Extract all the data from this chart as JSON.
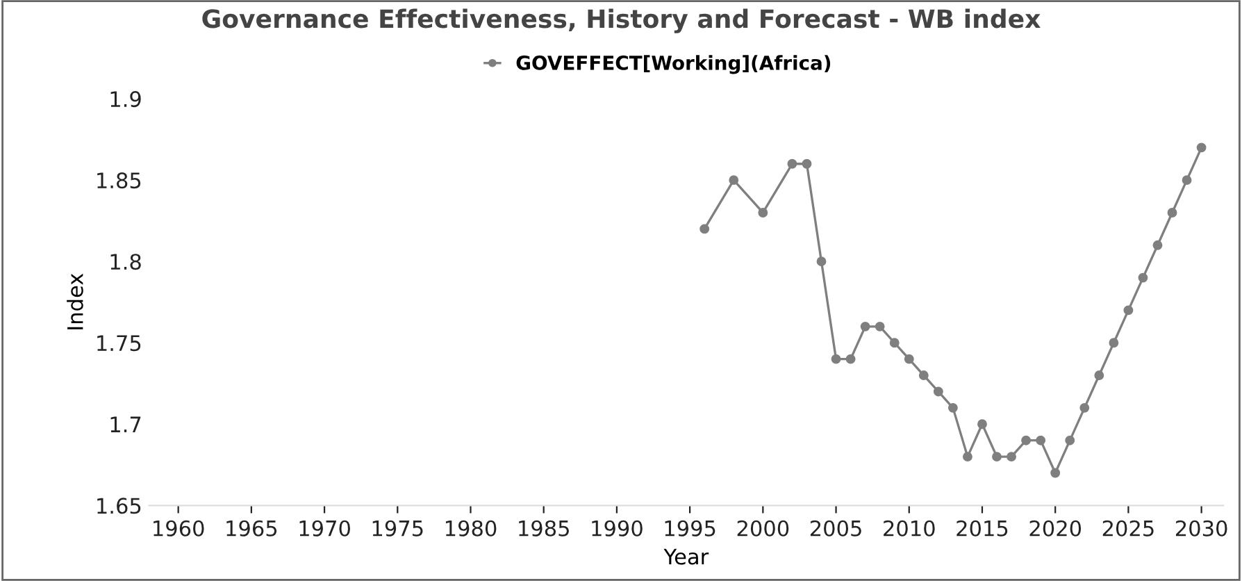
{
  "chart_data": {
    "type": "line",
    "title": "Governance Effectiveness, History and Forecast - WB index",
    "xlabel": "Year",
    "ylabel": "Index",
    "x": [
      1996,
      1998,
      2000,
      2002,
      2003,
      2004,
      2005,
      2006,
      2007,
      2008,
      2009,
      2010,
      2011,
      2012,
      2013,
      2014,
      2015,
      2016,
      2017,
      2018,
      2019,
      2020,
      2021,
      2022,
      2023,
      2024,
      2025,
      2026,
      2027,
      2028,
      2029,
      2030
    ],
    "series": [
      {
        "name": "GOVEFFECT[Working](Africa)",
        "color": "#7f7f7f",
        "values": [
          1.82,
          1.85,
          1.83,
          1.86,
          1.86,
          1.8,
          1.74,
          1.74,
          1.76,
          1.76,
          1.75,
          1.74,
          1.73,
          1.72,
          1.71,
          1.68,
          1.7,
          1.68,
          1.68,
          1.69,
          1.69,
          1.67,
          1.69,
          1.71,
          1.73,
          1.75,
          1.77,
          1.79,
          1.81,
          1.83,
          1.85,
          1.87
        ]
      }
    ],
    "xlim": [
      1958,
      2031.5
    ],
    "xticks": [
      1960,
      1965,
      1970,
      1975,
      1980,
      1985,
      1990,
      1995,
      2000,
      2005,
      2010,
      2015,
      2020,
      2025,
      2030
    ],
    "ylim": [
      1.65,
      1.9
    ],
    "yticks": [
      {
        "value": 1.65,
        "label": "1.65"
      },
      {
        "value": 1.7,
        "label": "1.7"
      },
      {
        "value": 1.75,
        "label": "1.75"
      },
      {
        "value": 1.8,
        "label": "1.8"
      },
      {
        "value": 1.85,
        "label": "1.85"
      },
      {
        "value": 1.9,
        "label": "1.9"
      }
    ],
    "marker": "circle",
    "line_style": "solid",
    "legend": "top",
    "grid": false
  }
}
